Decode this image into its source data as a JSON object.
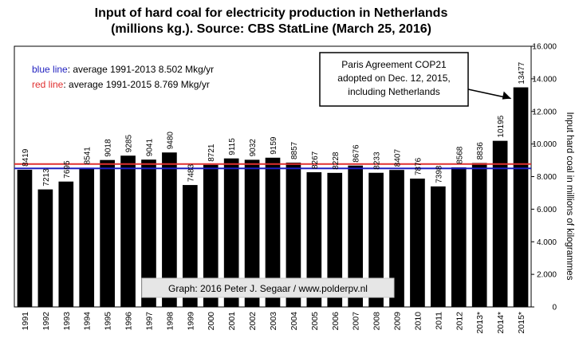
{
  "chart_data": {
    "type": "bar",
    "title": "Input of hard coal for electricity  production  in  Netherlands",
    "subtitle": "(millions  kg.). Source: CBS StatLine  (March 25, 2016)",
    "ylabel": "Input hard coal in millions of kilogrammes",
    "xlabel": "",
    "ylim": [
      0,
      16000
    ],
    "yticks": [
      "0",
      "2.000",
      "4.000",
      "6.000",
      "8.000",
      "10.000",
      "12.000",
      "14.000",
      "16.000"
    ],
    "y_axis_side": "right",
    "grid": false,
    "bar_color": "#000000",
    "categories": [
      "1991",
      "1992",
      "1993",
      "1994",
      "1995",
      "1996",
      "1997",
      "1998",
      "1999",
      "2000",
      "2001",
      "2002",
      "2003",
      "2004",
      "2005",
      "2006",
      "2007",
      "2008",
      "2009",
      "2010",
      "2011",
      "2012",
      "2013*",
      "2014*",
      "2015*"
    ],
    "values": [
      8419,
      7213,
      7695,
      8541,
      9018,
      9285,
      9041,
      9480,
      7483,
      8721,
      9115,
      9032,
      9159,
      8857,
      8267,
      8228,
      8676,
      8233,
      8407,
      7876,
      7398,
      8568,
      8836,
      10195,
      13477
    ],
    "value_labels": [
      "8419",
      "7213",
      "7695",
      "8541",
      "9018",
      "9285",
      "9041",
      "9480",
      "7483",
      "8721",
      "9115",
      "9032",
      "9159",
      "8857",
      "8267",
      "8228",
      "8676",
      "8233",
      "8407",
      "7876",
      "7398",
      "8568",
      "8836",
      "10195",
      "13477"
    ],
    "reference_lines": [
      {
        "label_colored": "blue line",
        "label_rest": ": average 1991-2013 8.502  Mkg/yr",
        "value": 8502,
        "color": "#1f1fbf"
      },
      {
        "label_colored": "red line",
        "label_rest": ": average 1991-2015  8.769  Mkg/yr",
        "value": 8769,
        "color": "#e03030"
      }
    ],
    "annotation": [
      "Paris Agreement COP21",
      "adopted on Dec. 12, 2015,",
      "including Netherlands"
    ],
    "credit": "Graph: 2016  Peter J. Segaar / www.polderpv.nl"
  }
}
